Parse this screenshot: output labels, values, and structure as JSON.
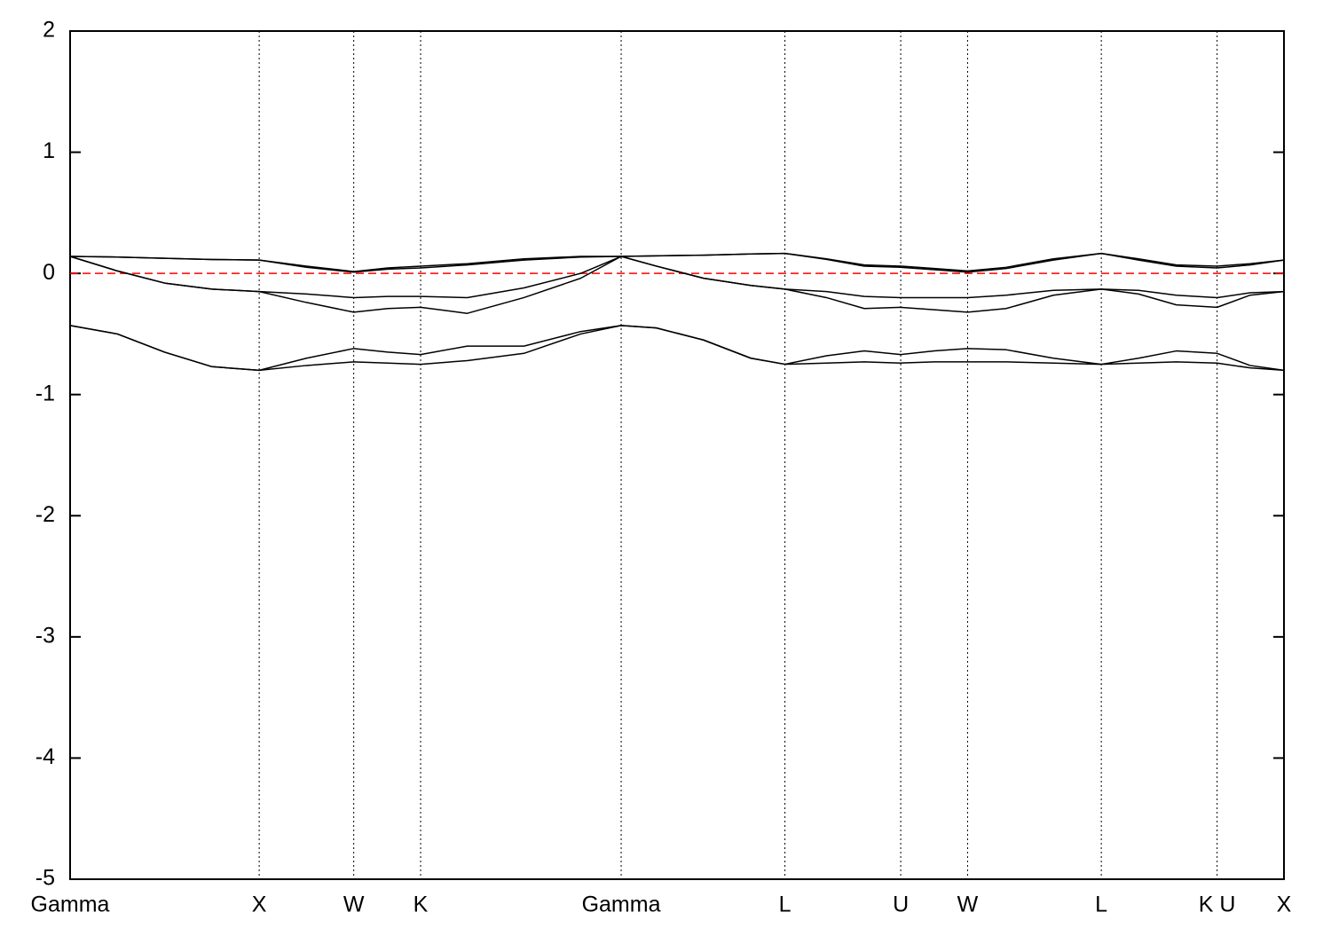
{
  "chart_data": {
    "type": "line",
    "x": [
      0,
      0.25,
      0.5,
      0.75,
      1,
      1.25,
      1.5,
      1.68,
      1.8536,
      2.1,
      2.4,
      2.7,
      2.9142,
      3.1,
      3.35,
      3.6,
      3.7802,
      4.0,
      4.2,
      4.3926,
      4.57,
      4.7462,
      4.95,
      5.2,
      5.4533,
      5.65,
      5.85,
      6.0657,
      6.24,
      6.4193
    ],
    "series": [
      {
        "color": "#000000",
        "values": [
          0.14,
          0.135,
          0.125,
          0.115,
          0.11,
          0.06,
          0.015,
          0.045,
          0.06,
          0.08,
          0.12,
          0.14,
          0.14,
          0.145,
          0.15,
          0.16,
          0.165,
          0.12,
          0.07,
          0.06,
          0.04,
          0.02,
          0.05,
          0.12,
          0.165,
          0.12,
          0.07,
          0.06,
          0.08,
          0.11
        ]
      },
      {
        "color": "#000000",
        "values": [
          0.14,
          0.135,
          0.125,
          0.115,
          0.11,
          0.05,
          0.01,
          0.035,
          0.045,
          0.07,
          0.11,
          0.135,
          0.14,
          0.145,
          0.15,
          0.16,
          0.165,
          0.115,
          0.06,
          0.05,
          0.03,
          0.01,
          0.04,
          0.11,
          0.165,
          0.11,
          0.06,
          0.045,
          0.07,
          0.11
        ]
      },
      {
        "color": "#000000",
        "values": [
          0.14,
          0.02,
          -0.08,
          -0.13,
          -0.15,
          -0.17,
          -0.2,
          -0.19,
          -0.19,
          -0.2,
          -0.12,
          0.0,
          0.14,
          0.06,
          -0.04,
          -0.1,
          -0.13,
          -0.15,
          -0.19,
          -0.2,
          -0.2,
          -0.2,
          -0.18,
          -0.14,
          -0.13,
          -0.14,
          -0.18,
          -0.2,
          -0.16,
          -0.15
        ]
      },
      {
        "color": "#000000",
        "values": [
          0.14,
          0.02,
          -0.08,
          -0.13,
          -0.15,
          -0.24,
          -0.32,
          -0.29,
          -0.28,
          -0.33,
          -0.2,
          -0.04,
          0.14,
          0.06,
          -0.04,
          -0.1,
          -0.13,
          -0.2,
          -0.29,
          -0.28,
          -0.3,
          -0.32,
          -0.29,
          -0.18,
          -0.13,
          -0.17,
          -0.26,
          -0.28,
          -0.18,
          -0.15
        ]
      },
      {
        "color": "#000000",
        "values": [
          -0.43,
          -0.5,
          -0.65,
          -0.77,
          -0.8,
          -0.7,
          -0.62,
          -0.65,
          -0.67,
          -0.6,
          -0.6,
          -0.48,
          -0.43,
          -0.45,
          -0.55,
          -0.7,
          -0.75,
          -0.68,
          -0.64,
          -0.67,
          -0.64,
          -0.62,
          -0.63,
          -0.7,
          -0.75,
          -0.7,
          -0.64,
          -0.66,
          -0.76,
          -0.8
        ]
      },
      {
        "color": "#000000",
        "values": [
          -0.43,
          -0.5,
          -0.65,
          -0.77,
          -0.8,
          -0.76,
          -0.73,
          -0.74,
          -0.75,
          -0.72,
          -0.66,
          -0.5,
          -0.43,
          -0.45,
          -0.55,
          -0.7,
          -0.75,
          -0.74,
          -0.73,
          -0.74,
          -0.73,
          -0.73,
          -0.73,
          -0.74,
          -0.75,
          -0.74,
          -0.73,
          -0.74,
          -0.78,
          -0.8
        ]
      }
    ],
    "xlim": [
      0,
      6.4193
    ],
    "xticks": [
      {
        "value": 0,
        "label": "Gamma"
      },
      {
        "value": 1,
        "label": "X"
      },
      {
        "value": 1.5,
        "label": "W"
      },
      {
        "value": 1.8536,
        "label": "K"
      },
      {
        "value": 2.9142,
        "label": "Gamma"
      },
      {
        "value": 3.7802,
        "label": "L"
      },
      {
        "value": 4.3926,
        "label": "U"
      },
      {
        "value": 4.7462,
        "label": "W"
      },
      {
        "value": 5.4533,
        "label": "L"
      },
      {
        "value": 6.0657,
        "label": "K U"
      },
      {
        "value": 6.4193,
        "label": "X"
      }
    ],
    "ylim": [
      -5,
      2
    ],
    "yticks": [
      -5,
      -4,
      -3,
      -2,
      -1,
      0,
      1,
      2
    ],
    "x_grid": true,
    "hline": {
      "value": 0,
      "color": "#ff0000"
    }
  }
}
